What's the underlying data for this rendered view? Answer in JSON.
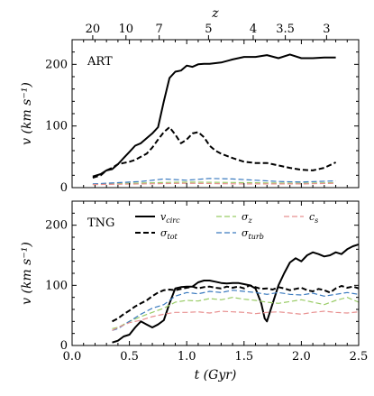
{
  "chart_data": [
    {
      "type": "line",
      "panel_label": "ART",
      "xlim": [
        0.0,
        2.5
      ],
      "ylim": [
        0,
        240
      ],
      "ylabel": "v (km s⁻¹)",
      "yticks": [
        0,
        100,
        200
      ],
      "top_axis": {
        "label": "z",
        "ticks": [
          {
            "label": "20",
            "t": 0.18
          },
          {
            "label": "10",
            "t": 0.47
          },
          {
            "label": "7",
            "t": 0.76
          },
          {
            "label": "5",
            "t": 1.19
          },
          {
            "label": "4",
            "t": 1.58
          },
          {
            "label": "3.5",
            "t": 1.86
          },
          {
            "label": "3",
            "t": 2.22
          }
        ]
      },
      "series": [
        {
          "name": "v_circ",
          "color": "#000000",
          "style": "solid",
          "width": 2.0,
          "x": [
            0.18,
            0.25,
            0.3,
            0.35,
            0.4,
            0.45,
            0.5,
            0.55,
            0.6,
            0.65,
            0.7,
            0.75,
            0.8,
            0.85,
            0.9,
            0.95,
            1.0,
            1.05,
            1.1,
            1.15,
            1.2,
            1.3,
            1.4,
            1.5,
            1.6,
            1.7,
            1.8,
            1.9,
            2.0,
            2.1,
            2.2,
            2.3
          ],
          "y": [
            18,
            22,
            28,
            30,
            38,
            48,
            58,
            68,
            72,
            80,
            88,
            98,
            140,
            178,
            188,
            190,
            198,
            196,
            200,
            201,
            201,
            203,
            208,
            212,
            212,
            215,
            210,
            216,
            210,
            210,
            211,
            211
          ]
        },
        {
          "name": "sigma_tot",
          "color": "#000000",
          "style": "dashed",
          "width": 2.0,
          "x": [
            0.18,
            0.25,
            0.3,
            0.35,
            0.4,
            0.45,
            0.5,
            0.55,
            0.6,
            0.65,
            0.7,
            0.75,
            0.8,
            0.85,
            0.9,
            0.95,
            1.0,
            1.05,
            1.1,
            1.15,
            1.2,
            1.25,
            1.3,
            1.4,
            1.5,
            1.6,
            1.7,
            1.8,
            1.9,
            2.0,
            2.1,
            2.2,
            2.3
          ],
          "y": [
            16,
            20,
            28,
            32,
            38,
            40,
            42,
            45,
            50,
            55,
            65,
            78,
            90,
            98,
            86,
            72,
            78,
            88,
            90,
            82,
            68,
            60,
            55,
            48,
            42,
            40,
            40,
            36,
            32,
            29,
            28,
            32,
            41
          ]
        },
        {
          "name": "sigma_z",
          "color": "#99cc66",
          "style": "dashed",
          "width": 1.2,
          "x": [
            0.18,
            0.5,
            1.0,
            1.5,
            2.0,
            2.3
          ],
          "y": [
            5,
            7,
            9,
            8,
            7,
            8
          ]
        },
        {
          "name": "sigma_turb",
          "color": "#3a7abf",
          "style": "dashed",
          "width": 1.2,
          "x": [
            0.18,
            0.4,
            0.6,
            0.8,
            1.0,
            1.2,
            1.4,
            1.6,
            1.8,
            2.0,
            2.3
          ],
          "y": [
            6,
            8,
            10,
            14,
            12,
            15,
            14,
            12,
            10,
            9,
            11
          ]
        },
        {
          "name": "c_s",
          "color": "#e89090",
          "style": "dashed",
          "width": 1.2,
          "x": [
            0.18,
            0.6,
            1.0,
            1.5,
            2.0,
            2.3
          ],
          "y": [
            5,
            6,
            7,
            6,
            6,
            7
          ]
        }
      ]
    },
    {
      "type": "line",
      "panel_label": "TNG",
      "xlim": [
        0.0,
        2.5
      ],
      "ylim": [
        0,
        240
      ],
      "xlabel": "t (Gyr)",
      "ylabel": "v (km s⁻¹)",
      "xticks": [
        0.0,
        0.5,
        1.0,
        1.5,
        2.0,
        2.5
      ],
      "xtick_labels": [
        "0.0",
        "0.5",
        "1.0",
        "1.5",
        "2.0",
        "2.5"
      ],
      "yticks": [
        0,
        100,
        200
      ],
      "series": [
        {
          "name": "v_circ",
          "color": "#000000",
          "style": "solid",
          "width": 2.0,
          "x": [
            0.35,
            0.4,
            0.45,
            0.5,
            0.55,
            0.6,
            0.65,
            0.7,
            0.75,
            0.8,
            0.85,
            0.9,
            0.95,
            1.0,
            1.05,
            1.1,
            1.15,
            1.2,
            1.25,
            1.3,
            1.35,
            1.4,
            1.45,
            1.5,
            1.55,
            1.6,
            1.65,
            1.68,
            1.7,
            1.75,
            1.8,
            1.85,
            1.9,
            1.95,
            2.0,
            2.05,
            2.1,
            2.15,
            2.2,
            2.25,
            2.3,
            2.35,
            2.4,
            2.45,
            2.5
          ],
          "y": [
            5,
            8,
            15,
            18,
            30,
            40,
            35,
            30,
            35,
            42,
            70,
            95,
            97,
            98,
            98,
            105,
            108,
            108,
            106,
            104,
            103,
            104,
            104,
            102,
            100,
            95,
            70,
            45,
            40,
            70,
            100,
            120,
            138,
            145,
            140,
            150,
            155,
            152,
            148,
            150,
            155,
            152,
            160,
            165,
            168
          ]
        },
        {
          "name": "sigma_tot",
          "color": "#000000",
          "style": "dashed",
          "width": 2.0,
          "x": [
            0.35,
            0.4,
            0.45,
            0.5,
            0.55,
            0.6,
            0.65,
            0.7,
            0.75,
            0.8,
            0.85,
            0.9,
            0.95,
            1.0,
            1.05,
            1.1,
            1.15,
            1.2,
            1.25,
            1.3,
            1.35,
            1.4,
            1.45,
            1.5,
            1.55,
            1.6,
            1.65,
            1.7,
            1.75,
            1.8,
            1.85,
            1.9,
            1.95,
            2.0,
            2.05,
            2.1,
            2.15,
            2.2,
            2.25,
            2.3,
            2.35,
            2.4,
            2.45,
            2.5
          ],
          "y": [
            40,
            45,
            52,
            58,
            65,
            70,
            75,
            82,
            88,
            92,
            93,
            92,
            94,
            96,
            98,
            95,
            97,
            98,
            96,
            95,
            98,
            96,
            98,
            95,
            100,
            97,
            94,
            95,
            93,
            97,
            95,
            92,
            94,
            96,
            92,
            90,
            94,
            92,
            88,
            95,
            99,
            96,
            98,
            95
          ]
        },
        {
          "name": "sigma_z",
          "color": "#99cc66",
          "style": "dashed",
          "width": 1.2,
          "x": [
            0.35,
            0.4,
            0.5,
            0.6,
            0.7,
            0.8,
            0.9,
            1.0,
            1.1,
            1.2,
            1.3,
            1.4,
            1.5,
            1.6,
            1.7,
            1.8,
            1.9,
            2.0,
            2.1,
            2.2,
            2.3,
            2.4,
            2.5
          ],
          "y": [
            28,
            30,
            40,
            48,
            55,
            62,
            72,
            75,
            74,
            78,
            76,
            80,
            77,
            75,
            72,
            70,
            73,
            76,
            72,
            68,
            75,
            80,
            72
          ]
        },
        {
          "name": "sigma_turb",
          "color": "#3a7abf",
          "style": "dashed",
          "width": 1.2,
          "x": [
            0.35,
            0.4,
            0.5,
            0.6,
            0.7,
            0.8,
            0.9,
            1.0,
            1.1,
            1.2,
            1.3,
            1.4,
            1.5,
            1.6,
            1.7,
            1.8,
            1.9,
            2.0,
            2.1,
            2.2,
            2.3,
            2.4,
            2.5
          ],
          "y": [
            25,
            28,
            40,
            52,
            62,
            68,
            82,
            88,
            86,
            90,
            88,
            92,
            90,
            88,
            85,
            88,
            85,
            84,
            87,
            82,
            85,
            88,
            85
          ]
        },
        {
          "name": "c_s",
          "color": "#e89090",
          "style": "dashed",
          "width": 1.2,
          "x": [
            0.35,
            0.4,
            0.5,
            0.6,
            0.7,
            0.8,
            0.9,
            1.0,
            1.1,
            1.2,
            1.3,
            1.4,
            1.5,
            1.6,
            1.7,
            1.8,
            1.9,
            2.0,
            2.1,
            2.2,
            2.3,
            2.4,
            2.5
          ],
          "y": [
            25,
            30,
            38,
            42,
            48,
            52,
            55,
            55,
            56,
            54,
            57,
            56,
            55,
            53,
            55,
            56,
            54,
            52,
            55,
            57,
            55,
            54,
            56
          ]
        }
      ],
      "legend": [
        {
          "series": "v_circ",
          "label": "v",
          "sub": "circ"
        },
        {
          "series": "sigma_z",
          "label": "σ",
          "sub": "z"
        },
        {
          "series": "c_s",
          "label": "c",
          "sub": "s"
        },
        {
          "series": "sigma_tot",
          "label": "σ",
          "sub": "tot"
        },
        {
          "series": "sigma_turb",
          "label": "σ",
          "sub": "turb"
        }
      ],
      "legend_placement": "top"
    }
  ]
}
